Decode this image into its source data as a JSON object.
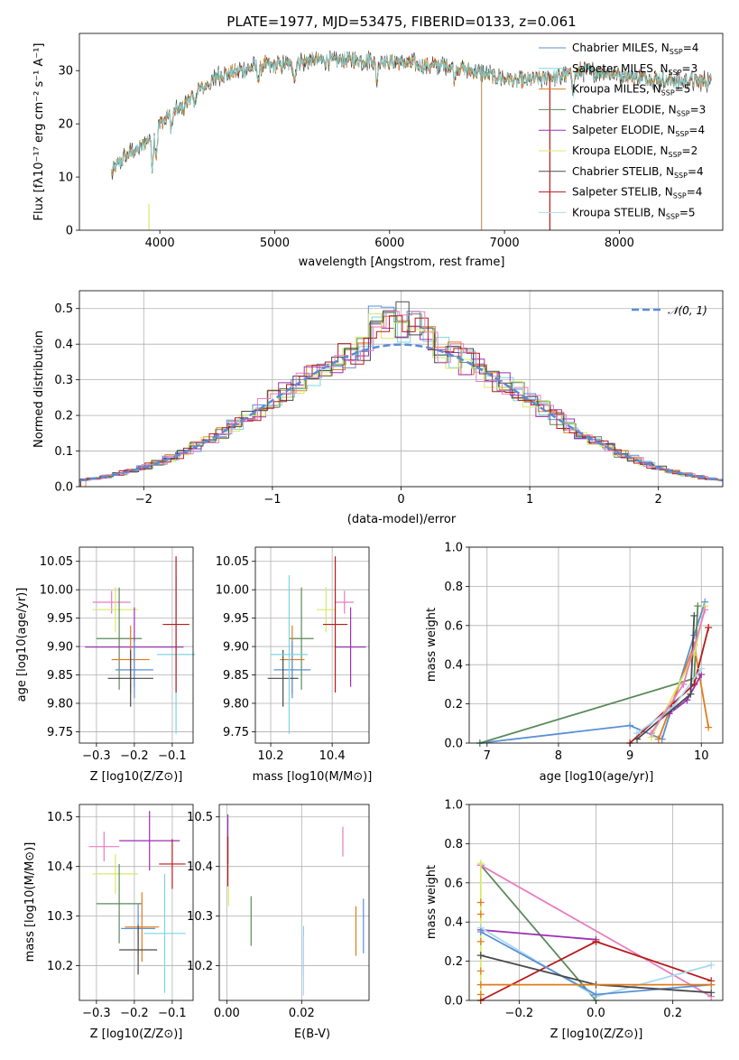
{
  "colors": {
    "chabrier_miles": "#5a8fd6",
    "salpeter_miles": "#7bd5e0",
    "kroupa_miles": "#e07b1a",
    "chabrier_elodie": "#5a8a5a",
    "salpeter_elodie": "#9b2fb5",
    "kroupa_elodie": "#d8e86a",
    "chabrier_stelib": "#4a4a4a",
    "salpeter_stelib": "#b81a1a",
    "kroupa_stelib": "#a8d8ee",
    "pink": "#e87dbf",
    "normal": "#5b8bd6"
  },
  "chart_data": [
    {
      "id": "spectrum",
      "type": "line",
      "title": "PLATE=1977, MJD=53475, FIBERID=0133, z=0.061",
      "xlabel": "wavelength [Angstrom, rest frame]",
      "ylabel": "Flux [fλ10⁻¹⁷ erg cm⁻² s⁻¹ A⁻¹]",
      "xlim": [
        3300,
        8900
      ],
      "ylim": [
        0,
        37
      ],
      "xticks": [
        4000,
        5000,
        6000,
        7000,
        8000
      ],
      "yticks": [
        0,
        10,
        20,
        30
      ],
      "legend": [
        "Chabrier MILES, N_SSP=4",
        "Salpeter MILES, N_SSP=3",
        "Kroupa MILES, N_SSP=5",
        "Chabrier ELODIE, N_SSP=3",
        "Salpeter ELODIE, N_SSP=4",
        "Kroupa ELODIE, N_SSP=2",
        "Chabrier STELIB, N_SSP=4",
        "Salpeter STELIB, N_SSP=4",
        "Kroupa STELIB, N_SSP=5"
      ],
      "legend_placement": "upper right",
      "continuum": {
        "x": [
          3580,
          3700,
          3800,
          3900,
          4000,
          4100,
          4200,
          4300,
          4400,
          4500,
          4700,
          4900,
          5100,
          5300,
          5500,
          5700,
          5900,
          6100,
          6300,
          6500,
          6700,
          6900,
          7100,
          7300,
          7500,
          7700,
          7900,
          8100,
          8300,
          8500,
          8700,
          8800
        ],
        "y": [
          11,
          14,
          15,
          17,
          20,
          22,
          23,
          26,
          27,
          29,
          30,
          31,
          31,
          32,
          32,
          32,
          32,
          31.5,
          31,
          31,
          30,
          29,
          28,
          28.5,
          29,
          30,
          29.5,
          29,
          28.5,
          28,
          28,
          28
        ]
      }
    },
    {
      "id": "residual_hist",
      "type": "step",
      "xlabel": "(data-model)/error",
      "ylabel": "Normed distribution",
      "xlim": [
        -2.5,
        2.5
      ],
      "ylim": [
        0,
        0.55
      ],
      "xticks": [
        -2,
        -1,
        0,
        1,
        2
      ],
      "yticks": [
        0.0,
        0.1,
        0.2,
        0.3,
        0.4,
        0.5
      ],
      "legend": [
        "𝒩(0, 1)"
      ],
      "legend_placement": "upper right",
      "bin_width": 0.1
    },
    {
      "id": "age_vs_Z",
      "type": "errorbar",
      "xlabel": "Z [log10(Z/Z⊙)]",
      "ylabel": "age  [log10(age/yr)]",
      "xlim": [
        -0.345,
        -0.045
      ],
      "ylim": [
        9.73,
        10.075
      ],
      "xticks": [
        -0.3,
        -0.2,
        -0.1
      ],
      "yticks": [
        9.75,
        9.8,
        9.85,
        9.9,
        9.95,
        10.0,
        10.05
      ],
      "points": [
        {
          "x": -0.26,
          "y": 9.978,
          "xerr": 0.05,
          "yerr": 0.02
        },
        {
          "x": -0.25,
          "y": 9.965,
          "xerr": 0.06,
          "yerr": 0.04
        },
        {
          "x": -0.24,
          "y": 9.914,
          "xerr": 0.06,
          "yerr": 0.09
        },
        {
          "x": -0.2,
          "y": 9.899,
          "xerr": 0.13,
          "yerr": 0.07
        },
        {
          "x": -0.21,
          "y": 9.877,
          "xerr": 0.05,
          "yerr": 0.06
        },
        {
          "x": -0.2,
          "y": 9.859,
          "xerr": 0.05,
          "yerr": 0.05
        },
        {
          "x": -0.21,
          "y": 9.844,
          "xerr": 0.06,
          "yerr": 0.05
        },
        {
          "x": -0.09,
          "y": 9.886,
          "xerr": 0.05,
          "yerr": 0.14
        },
        {
          "x": -0.09,
          "y": 9.939,
          "xerr": 0.035,
          "yerr": 0.12
        }
      ]
    },
    {
      "id": "age_vs_mass",
      "type": "errorbar",
      "xlabel": "mass [log10(M/M⊙)]",
      "ylabel": "",
      "xlim": [
        10.15,
        10.52
      ],
      "ylim": [
        9.73,
        10.075
      ],
      "xticks": [
        10.2,
        10.4
      ],
      "yticks": [
        9.75,
        9.8,
        9.85,
        9.9,
        9.95,
        10.0,
        10.05
      ],
      "points": [
        {
          "x": 10.44,
          "y": 9.978,
          "xerr": 0.03,
          "yerr": 0.02
        },
        {
          "x": 10.38,
          "y": 9.965,
          "xerr": 0.03,
          "yerr": 0.04
        },
        {
          "x": 10.3,
          "y": 9.914,
          "xerr": 0.04,
          "yerr": 0.09
        },
        {
          "x": 10.46,
          "y": 9.899,
          "xerr": 0.05,
          "yerr": 0.07
        },
        {
          "x": 10.27,
          "y": 9.877,
          "xerr": 0.04,
          "yerr": 0.06
        },
        {
          "x": 10.27,
          "y": 9.859,
          "xerr": 0.06,
          "yerr": 0.05
        },
        {
          "x": 10.24,
          "y": 9.844,
          "xerr": 0.05,
          "yerr": 0.05
        },
        {
          "x": 10.26,
          "y": 9.886,
          "xerr": 0.06,
          "yerr": 0.14
        },
        {
          "x": 10.41,
          "y": 9.939,
          "xerr": 0.04,
          "yerr": 0.12
        }
      ]
    },
    {
      "id": "weight_vs_age",
      "type": "line",
      "xlabel": "age  [log10(age/yr)]",
      "ylabel": "mass weight",
      "xlim": [
        6.75,
        10.3
      ],
      "ylim": [
        0,
        1
      ],
      "xticks": [
        7,
        8,
        9,
        10
      ],
      "yticks": [
        0.0,
        0.2,
        0.4,
        0.6,
        0.8,
        1.0
      ]
    },
    {
      "id": "mass_vs_Z",
      "type": "errorbar",
      "xlabel": "Z [log10(Z/Z⊙)]",
      "ylabel": "mass [log10(M/M⊙)]",
      "xlim": [
        -0.345,
        -0.045
      ],
      "ylim": [
        10.13,
        10.525
      ],
      "xticks": [
        -0.3,
        -0.2,
        -0.1
      ],
      "yticks": [
        10.2,
        10.3,
        10.4,
        10.5
      ],
      "points": [
        {
          "x": -0.28,
          "y": 10.44,
          "xerr": 0.04,
          "yerr": 0.03
        },
        {
          "x": -0.25,
          "y": 10.385,
          "xerr": 0.06,
          "yerr": 0.04
        },
        {
          "x": -0.24,
          "y": 10.325,
          "xerr": 0.06,
          "yerr": 0.08
        },
        {
          "x": -0.16,
          "y": 10.452,
          "xerr": 0.08,
          "yerr": 0.06
        },
        {
          "x": -0.18,
          "y": 10.278,
          "xerr": 0.045,
          "yerr": 0.07
        },
        {
          "x": -0.19,
          "y": 10.275,
          "xerr": 0.045,
          "yerr": 0.05
        },
        {
          "x": -0.19,
          "y": 10.232,
          "xerr": 0.05,
          "yerr": 0.05
        },
        {
          "x": -0.12,
          "y": 10.265,
          "xerr": 0.055,
          "yerr": 0.12
        },
        {
          "x": -0.1,
          "y": 10.405,
          "xerr": 0.035,
          "yerr": 0.05
        }
      ]
    },
    {
      "id": "mass_vs_ebv",
      "type": "errorbar",
      "xlabel": "E(B-V)",
      "ylabel": "",
      "xlim": [
        -0.002,
        0.038
      ],
      "ylim": [
        10.13,
        10.525
      ],
      "xticks": [
        0.0,
        0.02
      ],
      "yticks": [
        10.2,
        10.3,
        10.4,
        10.5
      ]
    },
    {
      "id": "weight_vs_Z",
      "type": "line",
      "xlabel": "Z [log10(Z/Z⊙)]",
      "ylabel": "mass weight",
      "xlim": [
        -0.33,
        0.33
      ],
      "ylim": [
        0,
        1
      ],
      "xticks": [
        -0.2,
        0.0,
        0.2
      ],
      "yticks": [
        0.0,
        0.2,
        0.4,
        0.6,
        0.8,
        1.0
      ]
    }
  ]
}
